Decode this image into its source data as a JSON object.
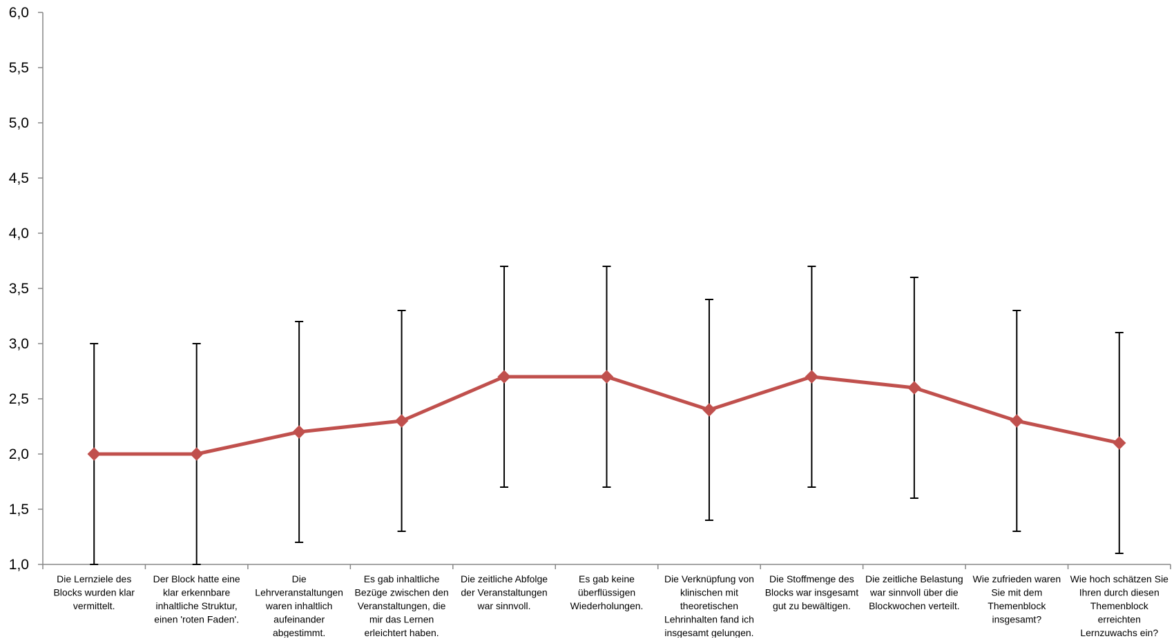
{
  "chart_data": {
    "type": "line",
    "title": "",
    "xlabel": "",
    "ylabel": "",
    "ylim": [
      1.0,
      6.0
    ],
    "ytick_labels": [
      "1,0",
      "1,5",
      "2,0",
      "2,5",
      "3,0",
      "3,5",
      "4,0",
      "4,5",
      "5,0",
      "5,5",
      "6,0"
    ],
    "grid": false,
    "legend": "none",
    "line_color": "#c0504d",
    "marker": "diamond",
    "categories": [
      [
        "Die Lernziele des",
        "Blocks wurden klar",
        "vermittelt."
      ],
      [
        "Der Block hatte eine",
        "klar erkennbare",
        "inhaltliche Struktur,",
        "einen 'roten Faden'."
      ],
      [
        "Die",
        "Lehrveranstaltungen",
        "waren inhaltlich",
        "aufeinander",
        "abgestimmt."
      ],
      [
        "Es gab inhaltliche",
        "Bezüge zwischen den",
        "Veranstaltungen, die",
        "mir das Lernen",
        "erleichtert haben."
      ],
      [
        "Die zeitliche Abfolge",
        "der Veranstaltungen",
        "war sinnvoll."
      ],
      [
        "Es gab keine",
        "überflüssigen",
        "Wiederholungen."
      ],
      [
        "Die Verknüpfung von",
        "klinischen mit",
        "theoretischen",
        "Lehrinhalten fand ich",
        "insgesamt gelungen."
      ],
      [
        "Die Stoffmenge des",
        "Blocks war insgesamt",
        "gut zu bewältigen."
      ],
      [
        "Die zeitliche Belastung",
        "war sinnvoll über die",
        "Blockwochen verteilt."
      ],
      [
        "Wie zufrieden waren",
        "Sie mit dem",
        "Themenblock",
        "insgesamt?"
      ],
      [
        "Wie hoch schätzen Sie",
        "Ihren durch diesen",
        "Themenblock",
        "erreichten",
        "Lernzuwachs ein?"
      ]
    ],
    "series": [
      {
        "values": [
          2.0,
          2.0,
          2.2,
          2.3,
          2.7,
          2.7,
          2.4,
          2.7,
          2.6,
          2.3,
          2.1
        ],
        "error_low": [
          1.0,
          1.0,
          1.2,
          1.3,
          1.7,
          1.7,
          1.4,
          1.7,
          1.6,
          1.3,
          1.1
        ],
        "error_high": [
          3.0,
          3.0,
          3.2,
          3.3,
          3.7,
          3.7,
          3.4,
          3.7,
          3.6,
          3.3,
          3.1
        ]
      }
    ]
  }
}
